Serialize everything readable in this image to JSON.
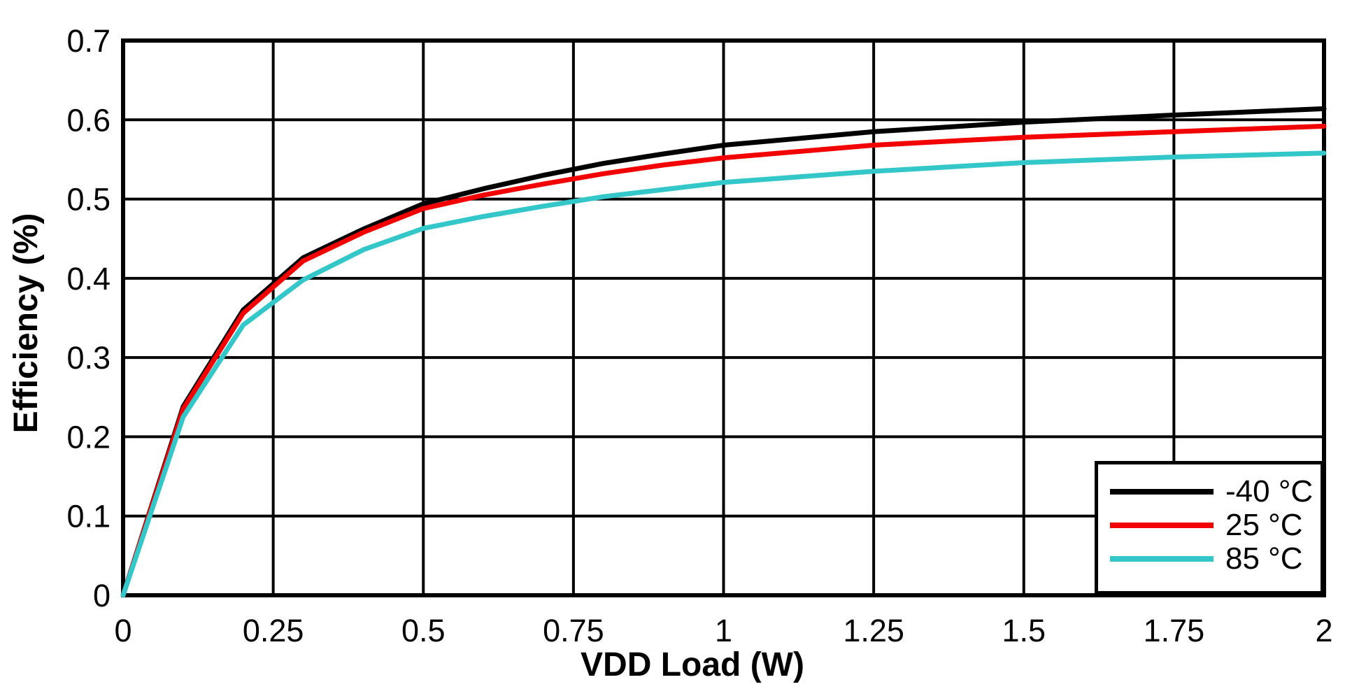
{
  "figure": {
    "background": "#FFFFFF",
    "axis_color": "#000000",
    "grid_color": "#000000",
    "tick_label_color": "#000000"
  },
  "chart_data": {
    "type": "line",
    "title": "",
    "xlabel": "VDD Load (W)",
    "ylabel": "Efficiency (%)",
    "xlim": [
      0,
      2
    ],
    "ylim": [
      0,
      0.7
    ],
    "grid": "on",
    "legend_position": "bottom-right",
    "x_tick_labels": [
      "0",
      "0.25",
      "0.5",
      "0.75",
      "1",
      "1.25",
      "1.5",
      "1.75",
      "2"
    ],
    "y_tick_labels": [
      "0",
      "0.1",
      "0.2",
      "0.3",
      "0.4",
      "0.5",
      "0.6",
      "0.7"
    ],
    "x": [
      0,
      0.1,
      0.2,
      0.3,
      0.4,
      0.5,
      0.6,
      0.7,
      0.8,
      0.9,
      1.0,
      1.25,
      1.5,
      1.75,
      2.0
    ],
    "series": [
      {
        "label": "-40 °C",
        "color": "#000000",
        "values": [
          0,
          0.238,
          0.36,
          0.426,
          0.462,
          0.494,
          0.513,
          0.53,
          0.545,
          0.557,
          0.568,
          0.585,
          0.597,
          0.606,
          0.614
        ]
      },
      {
        "label": "25 °C",
        "color": "#F30000",
        "values": [
          0,
          0.235,
          0.356,
          0.422,
          0.458,
          0.488,
          0.505,
          0.519,
          0.532,
          0.543,
          0.552,
          0.568,
          0.578,
          0.585,
          0.592
        ]
      },
      {
        "label": "85 °C",
        "color": "#34C7C9",
        "values": [
          0,
          0.225,
          0.341,
          0.398,
          0.436,
          0.463,
          0.478,
          0.491,
          0.503,
          0.512,
          0.521,
          0.535,
          0.546,
          0.553,
          0.558
        ]
      }
    ]
  }
}
